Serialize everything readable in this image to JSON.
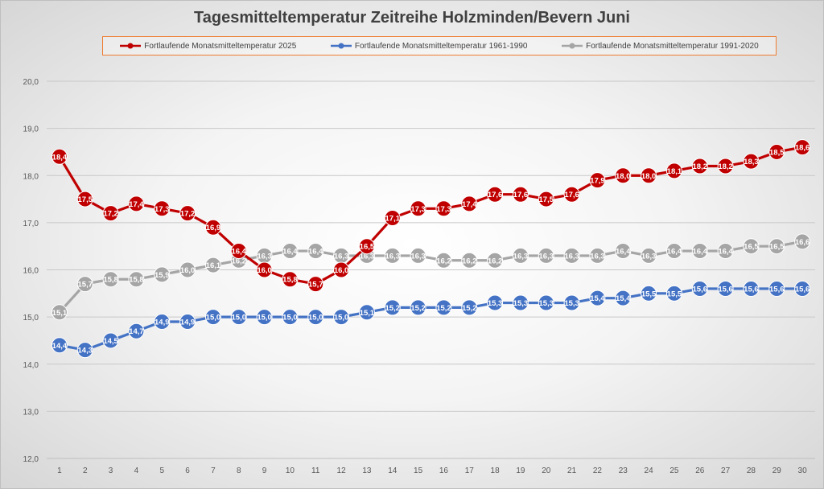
{
  "chart_data": {
    "type": "line",
    "title": "Tagesmitteltemperatur Zeitreihe Holzminden/Bevern Juni",
    "xlabel": "",
    "ylabel": "",
    "ylim": [
      12.0,
      20.0
    ],
    "y_ticks": [
      "12,0",
      "13,0",
      "14,0",
      "15,0",
      "16,0",
      "17,0",
      "18,0",
      "19,0",
      "20,0"
    ],
    "categories": [
      "1",
      "2",
      "3",
      "4",
      "5",
      "6",
      "7",
      "8",
      "9",
      "10",
      "11",
      "12",
      "13",
      "14",
      "15",
      "16",
      "17",
      "18",
      "19",
      "20",
      "21",
      "22",
      "23",
      "24",
      "25",
      "26",
      "27",
      "28",
      "29",
      "30"
    ],
    "legend_position": "top",
    "series": [
      {
        "name": "Fortlaufende Monatsmitteltemperatur 2025",
        "color": "#c00000",
        "values": [
          18.4,
          17.5,
          17.2,
          17.4,
          17.3,
          17.2,
          16.9,
          16.4,
          16.0,
          15.8,
          15.7,
          16.0,
          16.5,
          17.1,
          17.3,
          17.3,
          17.4,
          17.6,
          17.6,
          17.5,
          17.6,
          17.9,
          18.0,
          18.0,
          18.1,
          18.2,
          18.2,
          18.3,
          18.5,
          18.6
        ],
        "labels": [
          "18,4",
          "17,5",
          "17,2",
          "17,4",
          "17,3",
          "17,2",
          "16,9",
          "16,4",
          "16,0",
          "15,8",
          "15,7",
          "16,0",
          "16,5",
          "17,1",
          "17,3",
          "17,3",
          "17,4",
          "17,6",
          "17,6",
          "17,5",
          "17,6",
          "17,9",
          "18,0",
          "18,0",
          "18,1",
          "18,2",
          "18,2",
          "18,3",
          "18,5",
          "18,6"
        ]
      },
      {
        "name": "Fortlaufende Monatsmitteltemperatur 1961-1990",
        "color": "#4472c4",
        "values": [
          14.4,
          14.3,
          14.5,
          14.7,
          14.9,
          14.9,
          15.0,
          15.0,
          15.0,
          15.0,
          15.0,
          15.0,
          15.1,
          15.2,
          15.2,
          15.2,
          15.2,
          15.3,
          15.3,
          15.3,
          15.3,
          15.4,
          15.4,
          15.5,
          15.5,
          15.6,
          15.6,
          15.6,
          15.6,
          15.6
        ],
        "labels": [
          "14,4",
          "14,3",
          "14,5",
          "14,7",
          "14,9",
          "14,9",
          "15,0",
          "15,0",
          "15,0",
          "15,0",
          "15,0",
          "15,0",
          "15,1",
          "15,2",
          "15,2",
          "15,2",
          "15,2",
          "15,3",
          "15,3",
          "15,3",
          "15,3",
          "15,4",
          "15,4",
          "15,5",
          "15,5",
          "15,6",
          "15,6",
          "15,6",
          "15,6",
          "15,6"
        ]
      },
      {
        "name": "Fortlaufende Monatsmitteltemperatur 1991-2020",
        "color": "#a5a5a5",
        "values": [
          15.1,
          15.7,
          15.8,
          15.8,
          15.9,
          16.0,
          16.1,
          16.2,
          16.3,
          16.4,
          16.4,
          16.3,
          16.3,
          16.3,
          16.3,
          16.2,
          16.2,
          16.2,
          16.3,
          16.3,
          16.3,
          16.3,
          16.4,
          16.3,
          16.4,
          16.4,
          16.4,
          16.5,
          16.5,
          16.6
        ],
        "labels": [
          "15,1",
          "15,7",
          "15,8",
          "15,8",
          "15,9",
          "16,0",
          "16,1",
          "16,2",
          "16,3",
          "16,4",
          "16,4",
          "16,3",
          "16,3",
          "16,3",
          "16,3",
          "16,2",
          "16,2",
          "16,2",
          "16,3",
          "16,3",
          "16,3",
          "16,3",
          "16,4",
          "16,3",
          "16,4",
          "16,4",
          "16,4",
          "16,5",
          "16,5",
          "16,6"
        ]
      }
    ]
  }
}
